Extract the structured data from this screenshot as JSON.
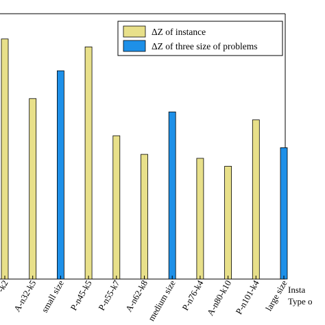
{
  "chart_data": {
    "type": "bar",
    "categories": [
      "-k2",
      "A-n32-k5",
      "small size",
      "P-n45-k5",
      "P-n55-k7",
      "A-n62-k8",
      "medium size",
      "P-n76-k4",
      "A-n80-k10",
      "P-n101-k4",
      "large size"
    ],
    "values": [
      0.905,
      0.68,
      0.785,
      0.875,
      0.54,
      0.47,
      0.63,
      0.455,
      0.425,
      0.6,
      0.495
    ],
    "series_of": [
      "instance",
      "instance",
      "problems",
      "instance",
      "instance",
      "instance",
      "problems",
      "instance",
      "instance",
      "instance",
      "problems"
    ],
    "series": [
      {
        "name": "ΔZ of instance",
        "key": "instance",
        "color": "#E8E08A"
      },
      {
        "name": "ΔZ of  three size of problems",
        "key": "problems",
        "color": "#1E90E8"
      }
    ],
    "ylim": [
      0,
      1
    ],
    "legend_position": "top-right",
    "grid": false,
    "xlabel_lines": [
      "Insta",
      "Type o"
    ]
  }
}
